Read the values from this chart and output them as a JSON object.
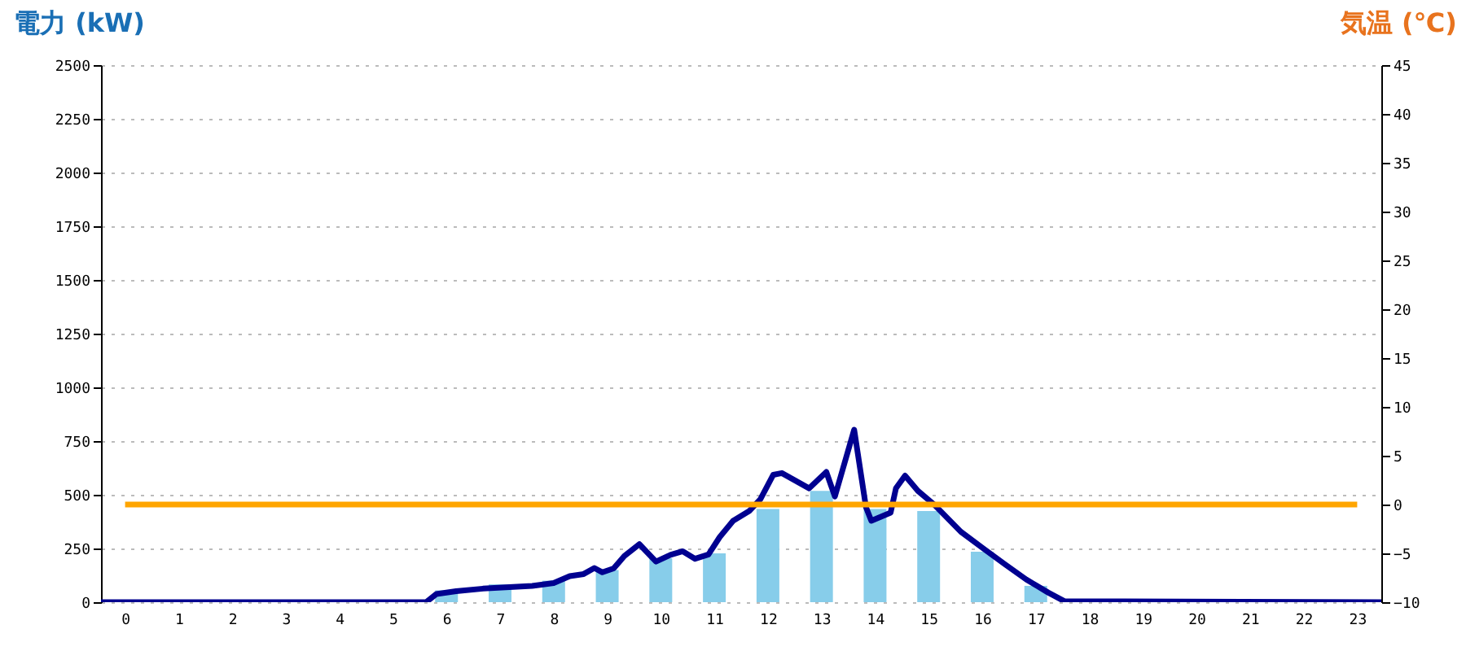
{
  "chart_data": {
    "type": "bar",
    "ylabel": "電力 (kW)",
    "y2label": "気温 (℃)",
    "x": [
      0,
      1,
      2,
      3,
      4,
      5,
      6,
      7,
      8,
      9,
      10,
      11,
      12,
      13,
      14,
      15,
      16,
      17,
      18,
      19,
      20,
      21,
      22,
      23
    ],
    "xlim": [
      -0.45,
      23.45
    ],
    "xticks": [
      0,
      1,
      2,
      3,
      4,
      5,
      6,
      7,
      8,
      9,
      10,
      11,
      12,
      13,
      14,
      15,
      16,
      17,
      18,
      19,
      20,
      21,
      22,
      23
    ],
    "ylim": [
      0,
      2500
    ],
    "yticks": [
      0,
      250,
      500,
      750,
      1000,
      1250,
      1500,
      1750,
      2000,
      2250,
      2500
    ],
    "y2lim": [
      -10,
      45
    ],
    "y2ticks": [
      -10,
      -5,
      0,
      5,
      10,
      15,
      20,
      25,
      30,
      35,
      40,
      45
    ],
    "grid": "y",
    "series": [
      {
        "type": "bar",
        "color": "#87cdea",
        "values": [
          0,
          0,
          0,
          0,
          0,
          0,
          55,
          83,
          100,
          150,
          205,
          227,
          434,
          518,
          434,
          424,
          235,
          76,
          0,
          0,
          0,
          0,
          0,
          0
        ]
      },
      {
        "type": "line",
        "color": "#000090",
        "x": [
          -0.45,
          5.62,
          5.81,
          6.18,
          6.68,
          7.6,
          8.0,
          8.3,
          8.56,
          8.76,
          8.91,
          9.12,
          9.32,
          9.6,
          9.91,
          10.18,
          10.41,
          10.64,
          10.89,
          11.1,
          11.35,
          11.65,
          11.86,
          12.1,
          12.26,
          12.77,
          13.09,
          13.25,
          13.61,
          13.83,
          13.93,
          14.29,
          14.39,
          14.56,
          14.8,
          15.1,
          15.6,
          16.01,
          16.42,
          16.82,
          17.23,
          17.53,
          23.45
        ],
        "values": [
          0,
          0,
          38,
          51,
          63,
          76,
          89,
          121,
          131,
          159,
          139,
          157,
          215,
          270,
          189,
          220,
          237,
          202,
          222,
          303,
          379,
          424,
          480,
          593,
          601,
          530,
          606,
          492,
          803,
          442,
          379,
          417,
          530,
          589,
          518,
          455,
          328,
          252,
          177,
          106,
          45,
          5,
          0
        ]
      },
      {
        "type": "line",
        "axis": "y2",
        "color": "#ffa500",
        "values": [
          0,
          0,
          0,
          0,
          0,
          0,
          0,
          0,
          0,
          0,
          0,
          0,
          0,
          0,
          0,
          0,
          0,
          0,
          0,
          0,
          0,
          0,
          0,
          0
        ]
      }
    ]
  }
}
